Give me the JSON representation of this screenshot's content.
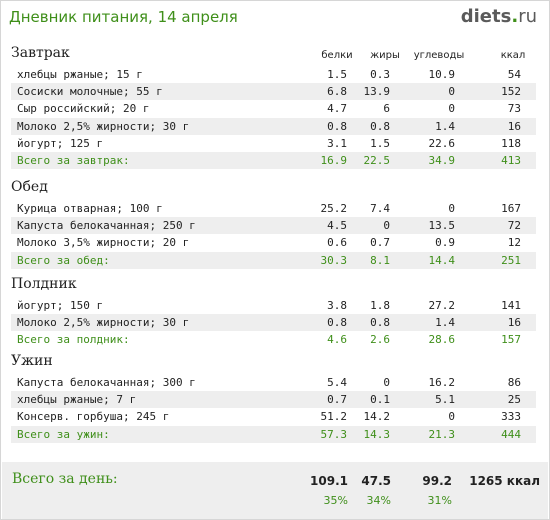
{
  "header": {
    "title": "Дневник питания, 14 апреля",
    "logo_main": "diets",
    "logo_dot": ".",
    "logo_tld": "ru"
  },
  "columns": {
    "protein": "белки",
    "fat": "жиры",
    "carbs": "углеводы",
    "kcal": "ккал"
  },
  "meals": [
    {
      "title": "Завтрак",
      "items": [
        {
          "name": "хлебцы ржаные; 15 г",
          "protein": "1.5",
          "fat": "0.3",
          "carbs": "10.9",
          "kcal": "54"
        },
        {
          "name": "Сосиски молочные; 55 г",
          "protein": "6.8",
          "fat": "13.9",
          "carbs": "0",
          "kcal": "152"
        },
        {
          "name": "Сыр российский; 20 г",
          "protein": "4.7",
          "fat": "6",
          "carbs": "0",
          "kcal": "73"
        },
        {
          "name": "Молоко 2,5% жирности; 30 г",
          "protein": "0.8",
          "fat": "0.8",
          "carbs": "1.4",
          "kcal": "16"
        },
        {
          "name": "йогурт; 125 г",
          "protein": "3.1",
          "fat": "1.5",
          "carbs": "22.6",
          "kcal": "118"
        }
      ],
      "total": {
        "name": "Всего за завтрак:",
        "protein": "16.9",
        "fat": "22.5",
        "carbs": "34.9",
        "kcal": "413"
      }
    },
    {
      "title": "Обед",
      "items": [
        {
          "name": "Курица отварная; 100 г",
          "protein": "25.2",
          "fat": "7.4",
          "carbs": "0",
          "kcal": "167"
        },
        {
          "name": "Капуста белокачанная; 250 г",
          "protein": "4.5",
          "fat": "0",
          "carbs": "13.5",
          "kcal": "72"
        },
        {
          "name": "Молоко 3,5% жирности; 20 г",
          "protein": "0.6",
          "fat": "0.7",
          "carbs": "0.9",
          "kcal": "12"
        }
      ],
      "total": {
        "name": "Всего за обед:",
        "protein": "30.3",
        "fat": "8.1",
        "carbs": "14.4",
        "kcal": "251"
      }
    },
    {
      "title": "Полдник",
      "items": [
        {
          "name": "йогурт; 150 г",
          "protein": "3.8",
          "fat": "1.8",
          "carbs": "27.2",
          "kcal": "141"
        },
        {
          "name": "Молоко 2,5% жирности; 30 г",
          "protein": "0.8",
          "fat": "0.8",
          "carbs": "1.4",
          "kcal": "16"
        }
      ],
      "total": {
        "name": "Всего за полдник:",
        "protein": "4.6",
        "fat": "2.6",
        "carbs": "28.6",
        "kcal": "157"
      }
    },
    {
      "title": "Ужин",
      "items": [
        {
          "name": "Капуста белокачанная; 300 г",
          "protein": "5.4",
          "fat": "0",
          "carbs": "16.2",
          "kcal": "86"
        },
        {
          "name": "хлебцы ржаные; 7 г",
          "protein": "0.7",
          "fat": "0.1",
          "carbs": "5.1",
          "kcal": "25"
        },
        {
          "name": "Консерв. горбуша; 245 г",
          "protein": "51.2",
          "fat": "14.2",
          "carbs": "0",
          "kcal": "333"
        }
      ],
      "total": {
        "name": "Всего за ужин:",
        "protein": "57.3",
        "fat": "14.3",
        "carbs": "21.3",
        "kcal": "444"
      }
    }
  ],
  "day_total": {
    "label": "Всего за день:",
    "protein": "109.1",
    "fat": "47.5",
    "carbs": "99.2",
    "kcal": "1265 ккал",
    "protein_pct": "35%",
    "fat_pct": "34%",
    "carbs_pct": "31%"
  },
  "colors": {
    "accent_green": "#3f8f1a",
    "row_alt": "#eeeeee"
  }
}
